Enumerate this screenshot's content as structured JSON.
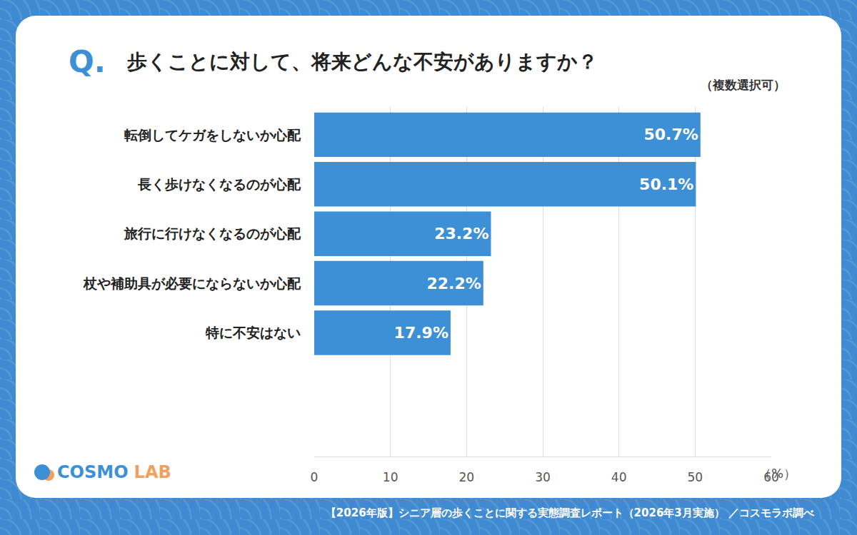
{
  "chart_data": {
    "type": "bar",
    "orientation": "horizontal",
    "title": "歩くことに対して、将来どんな不安がありますか？",
    "subtitle": "（複数選択可）",
    "xlabel": "（%）",
    "annotations": {
      "question": "Q.",
      "logo": "COSMO LAB",
      "footer": "【2026年版】シニア層の歩くことに関する実態調査レポート（2026年3月実施） ／コスモラボ調べ"
    },
    "categories": [
      "転倒してケガをしないか心配",
      "長く歩けなくなるのが心配",
      "旅行に行けなくなるのが心配",
      "杖や補助具が必要にならないか心配",
      "特に不安はない"
    ],
    "values": [
      50.7,
      50.1,
      23.2,
      22.2,
      17.9
    ],
    "value_labels": [
      "50.7%",
      "50.1%",
      "23.2%",
      "22.2%",
      "17.9%"
    ],
    "color": "#3d8fd6",
    "xlim": [
      0,
      60
    ],
    "xticks": [
      0,
      10,
      20,
      30,
      40,
      50,
      60
    ],
    "grid": true,
    "data_labels": true
  }
}
